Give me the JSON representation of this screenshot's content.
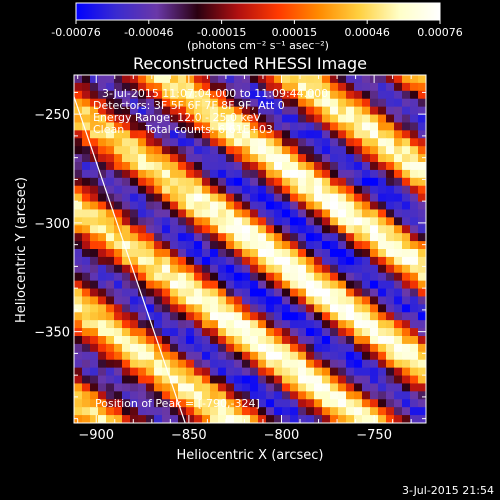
{
  "colors": {
    "background": "#000000",
    "foreground": "#ffffff",
    "colorbar_stops": [
      "#0000ff",
      "#3a2bd0",
      "#6a38a8",
      "#2a0010",
      "#b01010",
      "#ff3a00",
      "#ff8a00",
      "#ffd040",
      "#ffffc8",
      "#ffffff"
    ],
    "limb_line": "#ffffff"
  },
  "colorbar": {
    "tick_labels": [
      "-0.00076",
      "-0.00046",
      "-0.00015",
      "0.00015",
      "0.00046",
      "0.00076"
    ],
    "unit_label": "(photons cm⁻² s⁻¹ asec⁻²)",
    "range": [
      -0.00076,
      0.00076
    ]
  },
  "annotations": {
    "time_range": "3-Jul-2015 11:07:04.000 to 11:09:44.000",
    "detectors": "Detectors: 3F 5F 6F 7F 8F 9F, Att 0",
    "energy_range": "Energy Range: 12.0 - 25.0 keV",
    "clean_label": "Clean",
    "total_counts": "Total counts: 6.61E+03",
    "peak_position": "Position of Peak = [-790,-324]"
  },
  "footer": {
    "timestamp": "3-Jul-2015 21:54"
  },
  "chart_data": {
    "type": "heatmap",
    "title": "Reconstructed RHESSI Image",
    "xlabel": "Heliocentric X (arcsec)",
    "ylabel": "Heliocentric Y (arcsec)",
    "xlim": [
      -912,
      -722
    ],
    "ylim": [
      -392,
      -232
    ],
    "x_ticks": [
      -900,
      -850,
      -800,
      -750
    ],
    "y_ticks": [
      -250,
      -300,
      -350
    ],
    "x_tick_labels": [
      "−900",
      "−850",
      "−800",
      "−750"
    ],
    "y_tick_labels": [
      "−250",
      "−300",
      "−350"
    ],
    "peak": {
      "x": -790,
      "y": -324
    },
    "value_unit": "photons cm-2 s-1 asec-2",
    "vmin": -0.00076,
    "vmax": 0.00076,
    "stripe_angle_deg": 32,
    "stripe_period_arcsec": 38,
    "grid": false,
    "limb_line": [
      {
        "x": -912,
        "y": -242
      },
      {
        "x": -852,
        "y": -392
      }
    ]
  }
}
